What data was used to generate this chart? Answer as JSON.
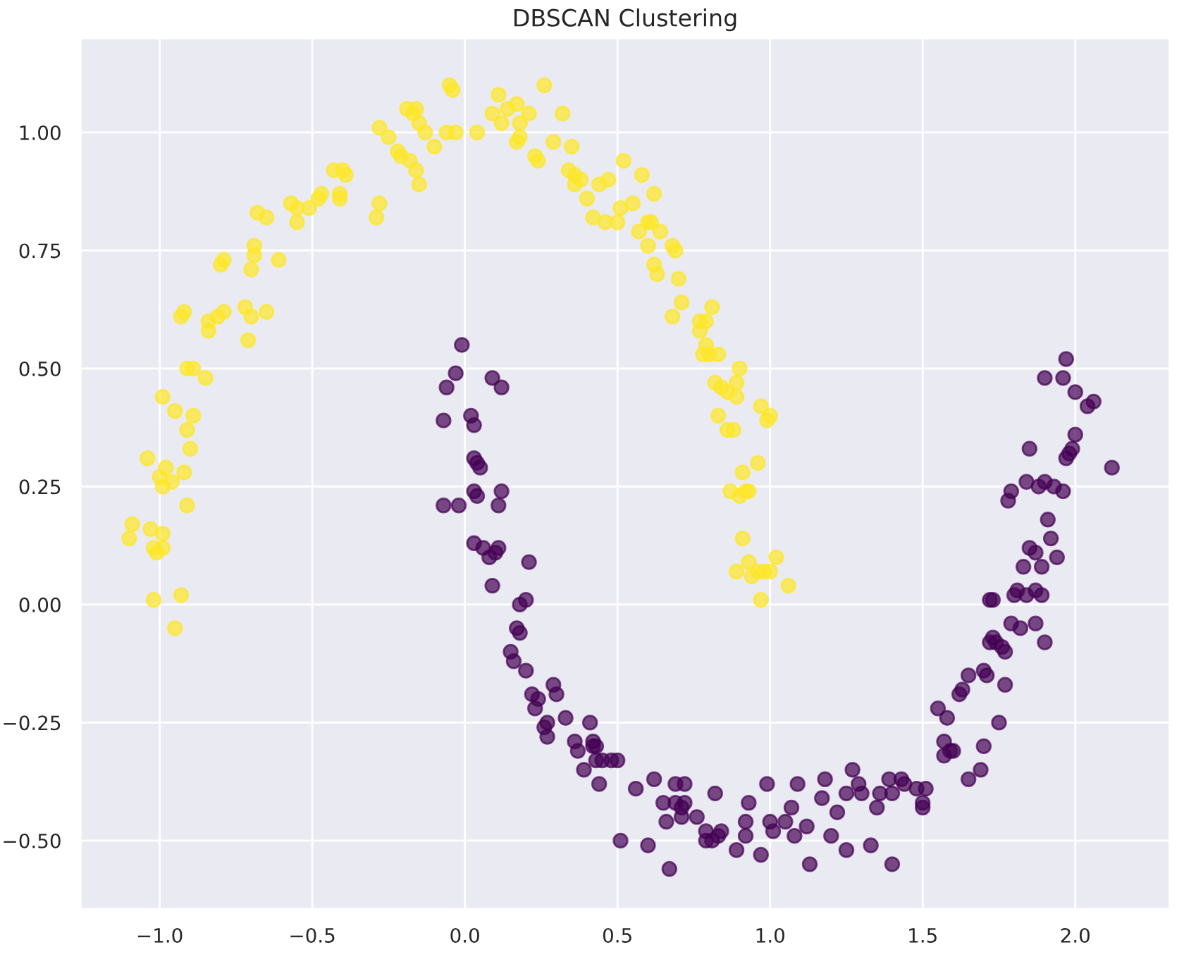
{
  "chart_data": {
    "type": "scatter",
    "title": "DBSCAN Clustering",
    "grid": true,
    "marker": "circle",
    "xlim": [
      -1.26,
      2.31
    ],
    "ylim": [
      -0.645,
      1.2
    ],
    "xticks": [
      {
        "value": -1.0,
        "label": "−1.0"
      },
      {
        "value": -0.5,
        "label": "−0.5"
      },
      {
        "value": 0.0,
        "label": "0.0"
      },
      {
        "value": 0.5,
        "label": "0.5"
      },
      {
        "value": 1.0,
        "label": "1.0"
      },
      {
        "value": 1.5,
        "label": "1.5"
      },
      {
        "value": 2.0,
        "label": "2.0"
      }
    ],
    "yticks": [
      {
        "value": -0.5,
        "label": "−0.50"
      },
      {
        "value": -0.25,
        "label": "−0.25"
      },
      {
        "value": 0.0,
        "label": "0.00"
      },
      {
        "value": 0.25,
        "label": "0.25"
      },
      {
        "value": 0.5,
        "label": "0.50"
      },
      {
        "value": 0.75,
        "label": "0.75"
      },
      {
        "value": 1.0,
        "label": "1.00"
      }
    ],
    "series": [
      {
        "color": "#fde725",
        "x": [
          -1.1,
          -1.09,
          -1.03,
          -1.02,
          -1.02,
          -0.99,
          -0.99,
          -1.01,
          -0.95,
          -0.93,
          -1.04,
          -1.0,
          -0.98,
          -0.99,
          -0.96,
          -0.92,
          -0.91,
          -0.99,
          -0.95,
          -0.91,
          -0.9,
          -0.89,
          -0.91,
          -0.89,
          -0.85,
          -0.93,
          -0.92,
          -0.84,
          -0.84,
          -0.81,
          -0.79,
          -0.8,
          -0.79,
          -0.72,
          -0.7,
          -0.65,
          -0.71,
          -0.7,
          -0.69,
          -0.69,
          -0.65,
          -0.68,
          -0.61,
          -0.57,
          -0.55,
          -0.55,
          -0.51,
          -0.48,
          -0.47,
          -0.43,
          -0.4,
          -0.39,
          -0.41,
          -0.41,
          -0.29,
          -0.28,
          -0.28,
          -0.25,
          -0.22,
          -0.21,
          -0.18,
          -0.16,
          -0.15,
          -0.19,
          -0.17,
          -0.16,
          -0.15,
          -0.13,
          -0.1,
          -0.06,
          -0.04,
          -0.05,
          -0.03,
          0.04,
          0.09,
          0.11,
          0.12,
          0.14,
          0.17,
          0.17,
          0.18,
          0.18,
          0.23,
          0.24,
          0.26,
          0.21,
          0.32,
          0.29,
          0.35,
          0.34,
          0.36,
          0.36,
          0.38,
          0.4,
          0.44,
          0.47,
          0.42,
          0.46,
          0.5,
          0.51,
          0.52,
          0.55,
          0.57,
          0.58,
          0.61,
          0.6,
          0.62,
          0.6,
          0.62,
          0.63,
          0.64,
          0.68,
          0.69,
          0.7,
          0.68,
          0.71,
          0.77,
          0.79,
          0.77,
          0.81,
          0.79,
          0.78,
          0.8,
          0.83,
          0.82,
          0.84,
          0.86,
          0.83,
          0.86,
          0.89,
          0.9,
          0.89,
          0.88,
          0.91,
          0.87,
          0.9,
          0.92,
          0.93,
          0.96,
          0.97,
          0.99,
          1.0,
          0.91,
          0.89,
          0.93,
          0.94,
          0.96,
          0.98,
          1.0,
          1.02,
          1.06,
          0.97
        ],
        "values": [
          0.14,
          0.17,
          0.16,
          0.12,
          0.01,
          0.12,
          0.15,
          0.11,
          -0.05,
          0.02,
          0.31,
          0.27,
          0.29,
          0.25,
          0.26,
          0.28,
          0.21,
          0.44,
          0.41,
          0.37,
          0.33,
          0.4,
          0.5,
          0.5,
          0.48,
          0.61,
          0.62,
          0.58,
          0.6,
          0.61,
          0.62,
          0.72,
          0.73,
          0.63,
          0.61,
          0.62,
          0.56,
          0.71,
          0.74,
          0.76,
          0.82,
          0.83,
          0.73,
          0.85,
          0.84,
          0.81,
          0.84,
          0.86,
          0.87,
          0.92,
          0.92,
          0.91,
          0.87,
          0.86,
          0.82,
          0.85,
          1.01,
          0.99,
          0.96,
          0.95,
          0.94,
          0.92,
          0.89,
          1.05,
          1.04,
          1.05,
          1.02,
          1.0,
          0.97,
          1.0,
          1.09,
          1.1,
          1.0,
          1.0,
          1.04,
          1.08,
          1.02,
          1.05,
          1.06,
          0.98,
          0.99,
          1.02,
          0.95,
          0.94,
          1.1,
          1.04,
          1.04,
          0.98,
          0.97,
          0.92,
          0.91,
          0.89,
          0.9,
          0.86,
          0.89,
          0.9,
          0.82,
          0.81,
          0.81,
          0.84,
          0.94,
          0.85,
          0.79,
          0.91,
          0.81,
          0.81,
          0.87,
          0.76,
          0.72,
          0.7,
          0.79,
          0.76,
          0.75,
          0.69,
          0.61,
          0.64,
          0.6,
          0.6,
          0.58,
          0.63,
          0.55,
          0.53,
          0.53,
          0.53,
          0.47,
          0.46,
          0.45,
          0.4,
          0.37,
          0.47,
          0.5,
          0.44,
          0.37,
          0.28,
          0.24,
          0.23,
          0.24,
          0.24,
          0.3,
          0.42,
          0.39,
          0.4,
          0.14,
          0.07,
          0.09,
          0.06,
          0.07,
          0.07,
          0.07,
          0.1,
          0.04,
          0.01
        ]
      },
      {
        "color": "#440154",
        "x": [
          -0.01,
          -0.03,
          -0.06,
          -0.07,
          0.02,
          0.03,
          0.03,
          0.04,
          0.05,
          -0.07,
          -0.02,
          0.03,
          0.04,
          0.06,
          0.03,
          0.09,
          0.12,
          0.12,
          0.11,
          0.08,
          0.1,
          0.11,
          0.09,
          0.15,
          0.17,
          0.18,
          0.18,
          0.2,
          0.21,
          0.16,
          0.2,
          0.22,
          0.23,
          0.24,
          0.29,
          0.3,
          0.33,
          0.27,
          0.26,
          0.27,
          0.36,
          0.37,
          0.41,
          0.42,
          0.42,
          0.43,
          0.43,
          0.39,
          0.45,
          0.48,
          0.5,
          0.44,
          0.51,
          0.56,
          0.6,
          0.65,
          0.62,
          0.66,
          0.67,
          0.69,
          0.69,
          0.71,
          0.72,
          0.71,
          0.72,
          0.76,
          0.79,
          0.79,
          0.81,
          0.83,
          0.84,
          0.82,
          0.89,
          0.92,
          0.92,
          0.93,
          0.97,
          0.99,
          1.0,
          1.01,
          1.05,
          1.07,
          1.09,
          1.08,
          1.12,
          1.13,
          1.17,
          1.18,
          1.2,
          1.22,
          1.25,
          1.25,
          1.27,
          1.29,
          1.3,
          1.33,
          1.35,
          1.36,
          1.39,
          1.4,
          1.4,
          1.43,
          1.44,
          1.48,
          1.5,
          1.51,
          1.5,
          1.55,
          1.58,
          1.57,
          1.59,
          1.6,
          1.57,
          1.62,
          1.63,
          1.65,
          1.65,
          1.7,
          1.71,
          1.7,
          1.69,
          1.72,
          1.73,
          1.74,
          1.76,
          1.77,
          1.75,
          1.77,
          1.79,
          1.82,
          1.72,
          1.73,
          1.8,
          1.81,
          1.84,
          1.83,
          1.85,
          1.87,
          1.89,
          1.89,
          1.87,
          1.78,
          1.79,
          1.84,
          1.88,
          1.91,
          1.92,
          1.9,
          1.94,
          1.93,
          1.97,
          1.98,
          1.96,
          1.99,
          2.0,
          1.85,
          1.9,
          1.96,
          2.0,
          1.97,
          2.04,
          2.06,
          2.12,
          1.87,
          1.9
        ],
        "values": [
          0.55,
          0.49,
          0.46,
          0.39,
          0.4,
          0.38,
          0.31,
          0.3,
          0.29,
          0.21,
          0.21,
          0.24,
          0.23,
          0.12,
          0.13,
          0.48,
          0.46,
          0.24,
          0.21,
          0.1,
          0.11,
          0.12,
          0.04,
          -0.1,
          -0.05,
          -0.06,
          0.0,
          0.01,
          0.09,
          -0.12,
          -0.14,
          -0.19,
          -0.22,
          -0.2,
          -0.17,
          -0.19,
          -0.24,
          -0.25,
          -0.26,
          -0.28,
          -0.29,
          -0.31,
          -0.25,
          -0.29,
          -0.3,
          -0.3,
          -0.33,
          -0.35,
          -0.33,
          -0.33,
          -0.33,
          -0.38,
          -0.5,
          -0.39,
          -0.51,
          -0.42,
          -0.37,
          -0.46,
          -0.56,
          -0.42,
          -0.38,
          -0.43,
          -0.42,
          -0.45,
          -0.38,
          -0.45,
          -0.5,
          -0.48,
          -0.5,
          -0.49,
          -0.48,
          -0.4,
          -0.52,
          -0.46,
          -0.49,
          -0.42,
          -0.53,
          -0.38,
          -0.46,
          -0.48,
          -0.46,
          -0.43,
          -0.38,
          -0.49,
          -0.47,
          -0.55,
          -0.41,
          -0.37,
          -0.49,
          -0.44,
          -0.52,
          -0.4,
          -0.35,
          -0.38,
          -0.4,
          -0.51,
          -0.43,
          -0.4,
          -0.37,
          -0.4,
          -0.55,
          -0.37,
          -0.38,
          -0.39,
          -0.42,
          -0.39,
          -0.43,
          -0.22,
          -0.24,
          -0.29,
          -0.31,
          -0.31,
          -0.32,
          -0.19,
          -0.18,
          -0.37,
          -0.15,
          -0.14,
          -0.15,
          -0.3,
          -0.35,
          -0.08,
          -0.07,
          -0.08,
          -0.09,
          -0.1,
          -0.25,
          -0.17,
          -0.04,
          -0.05,
          0.01,
          0.01,
          0.02,
          0.03,
          0.02,
          0.08,
          0.12,
          0.03,
          0.02,
          0.08,
          0.11,
          0.22,
          0.24,
          0.26,
          0.25,
          0.18,
          0.14,
          0.26,
          0.1,
          0.25,
          0.31,
          0.32,
          0.24,
          0.33,
          0.36,
          0.33,
          0.48,
          0.48,
          0.45,
          0.52,
          0.42,
          0.43,
          0.29,
          -0.04,
          -0.08
        ]
      }
    ]
  }
}
